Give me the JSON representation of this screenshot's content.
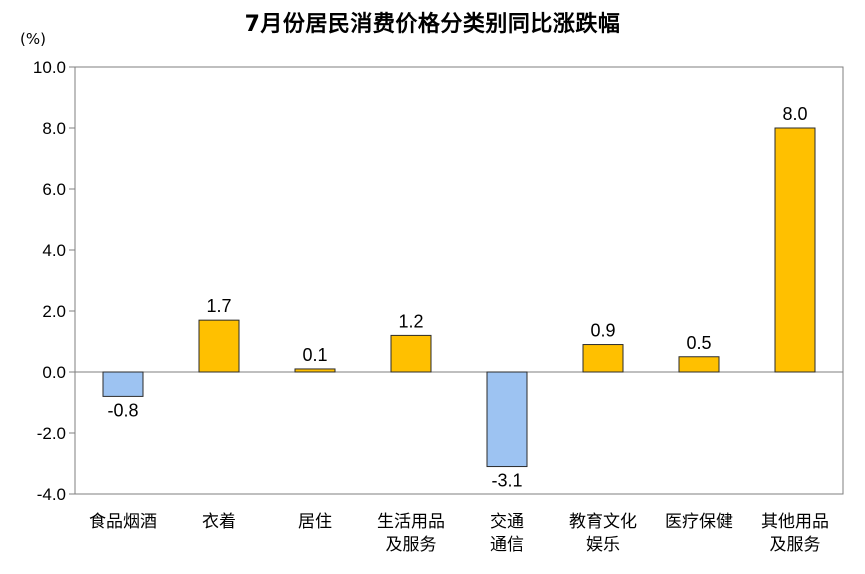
{
  "chart_data": {
    "type": "bar",
    "title": "7月份居民消费价格分类别同比涨跌幅",
    "unit": "(%)",
    "categories": [
      [
        "食品烟酒"
      ],
      [
        "衣着"
      ],
      [
        "居住"
      ],
      [
        "生活用品",
        "及服务"
      ],
      [
        "交通",
        "通信"
      ],
      [
        "教育文化",
        "娱乐"
      ],
      [
        "医疗保健"
      ],
      [
        "其他用品",
        "及服务"
      ]
    ],
    "values": [
      -0.8,
      1.7,
      0.1,
      1.2,
      -3.1,
      0.9,
      0.5,
      8.0
    ],
    "data_labels": [
      "-0.8",
      "1.7",
      "0.1",
      "1.2",
      "-3.1",
      "0.9",
      "0.5",
      "8.0"
    ],
    "yticks": [
      "10.0",
      "8.0",
      "6.0",
      "4.0",
      "2.0",
      "0.0",
      "-2.0",
      "-4.0"
    ],
    "ylim": [
      -4,
      10
    ],
    "colors": {
      "positive": "#FFC000",
      "negative": "#9DC3F2",
      "positive_edge": "#2b2b2b",
      "negative_edge": "#2b2b2b"
    },
    "grid": false,
    "legend": "none"
  }
}
